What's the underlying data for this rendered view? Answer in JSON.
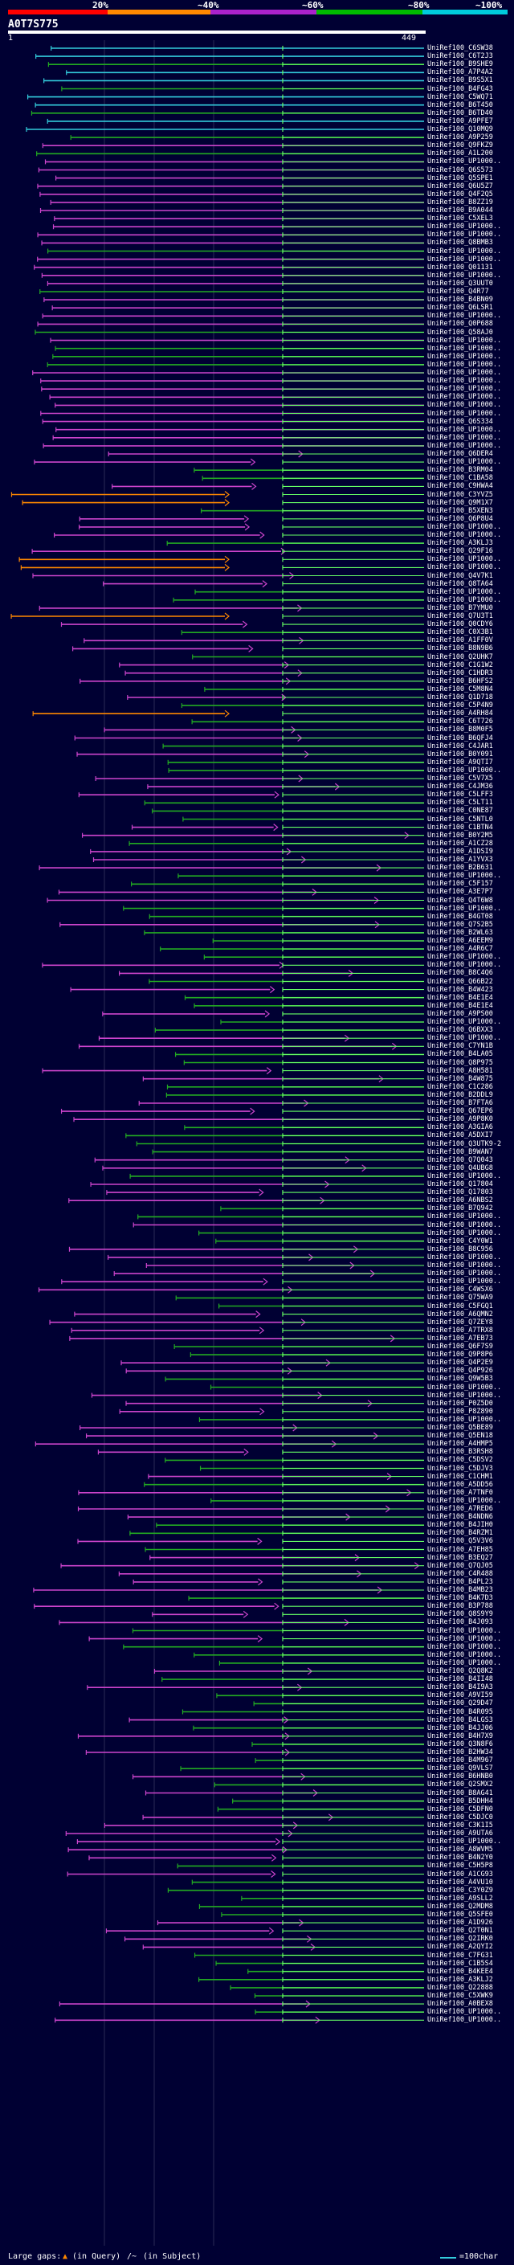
{
  "percent_axis": {
    "labels": [
      "20%",
      "~40%",
      "~60%",
      "~80%",
      "~100%"
    ],
    "band_colors": [
      "#ff0000",
      "#ff8800",
      "#aa22cc",
      "#00bb00",
      "#00ccdd"
    ]
  },
  "query": {
    "id": "A0T7S775",
    "start": "1",
    "end": "449"
  },
  "hit_colors": {
    "cyan": "#33ccdd",
    "green": "#22aa22",
    "magenta": "#cc44cc",
    "orange": "#ff8800",
    "pale_green": "#66ff66"
  },
  "hits": [
    "UniRef100_C6SW38",
    "UniRef100_C6T2J3",
    "UniRef100_B9SHE9",
    "UniRef100_A7P4A2",
    "UniRef100_B9S5X1",
    "UniRef100_B4FG43",
    "UniRef100_C5WQ71",
    "UniRef100_B6T450",
    "UniRef100_B6TD40",
    "UniRef100_A9PFE7",
    "UniRef100_Q10MQ9",
    "UniRef100_A9P259",
    "UniRef100_Q9FKZ9",
    "UniRef100_A1L200",
    "UniRef100_UP1000..",
    "UniRef100_Q6S573",
    "UniRef100_Q5SPE1",
    "UniRef100_Q6U5Z7",
    "UniRef100_Q4F2Q5",
    "UniRef100_B8ZZ19",
    "UniRef100_B9A044",
    "UniRef100_C5XEL3",
    "UniRef100_UP1000..",
    "UniRef100_UP1000..",
    "UniRef100_Q8BMB3",
    "UniRef100_UP1000..",
    "UniRef100_UP1000..",
    "UniRef100_Q01131",
    "UniRef100_UP1000..",
    "UniRef100_Q3UUT0",
    "UniRef100_Q4R77",
    "UniRef100_B4BN09",
    "UniRef100_Q6LSR1",
    "UniRef100_UP1000..",
    "UniRef100_Q0P688",
    "UniRef100_Q58AJ0",
    "UniRef100_UP1000..",
    "UniRef100_UP1000..",
    "UniRef100_UP1000..",
    "UniRef100_UP1000..",
    "UniRef100_UP1000..",
    "UniRef100_UP1000..",
    "UniRef100_UP1000..",
    "UniRef100_UP1000..",
    "UniRef100_UP1000..",
    "UniRef100_UP1000..",
    "UniRef100_Q6S334",
    "UniRef100_UP1000..",
    "UniRef100_UP1000..",
    "UniRef100_UP1000..",
    "UniRef100_Q6DER4",
    "UniRef100_UP1000..",
    "UniRef100_B3RM04",
    "UniRef100_C1BA58",
    "UniRef100_C9HWA4",
    "UniRef100_C3YVZ5",
    "UniRef100_Q9M1X7",
    "UniRef100_B5XEN3",
    "UniRef100_Q6P8U4",
    "UniRef100_UP1000..",
    "UniRef100_UP1000..",
    "UniRef100_A3KLJ3",
    "UniRef100_Q29F16",
    "UniRef100_UP1000..",
    "UniRef100_UP1000..",
    "UniRef100_Q4V7K1",
    "UniRef100_Q8TA64",
    "UniRef100_UP1000..",
    "UniRef100_UP1000..",
    "UniRef100_B7YMU0",
    "UniRef100_Q7U3T1",
    "UniRef100_Q0CDY6",
    "UniRef100_C0X3B1",
    "UniRef100_A1FF0V",
    "UniRef100_B8N9B6",
    "UniRef100_Q2UHK7",
    "UniRef100_C1G1W2",
    "UniRef100_C1HDR3",
    "UniRef100_B6HFS2",
    "UniRef100_C5M8N4",
    "UniRef100_Q1D718",
    "UniRef100_C5P4N9",
    "UniRef100_A4RH84",
    "UniRef100_C6T726",
    "UniRef100_B8M0F5",
    "UniRef100_B6QFJ4",
    "UniRef100_C4JAR1",
    "UniRef100_B0Y091",
    "UniRef100_A9QTI7",
    "UniRef100_UP1000..",
    "UniRef100_C5V7X5",
    "UniRef100_C4JM36",
    "UniRef100_C5LFF3",
    "UniRef100_C5LT11",
    "UniRef100_C0NE87",
    "UniRef100_C5NTL0",
    "UniRef100_C1BTN4",
    "UniRef100_B0Y2M5",
    "UniRef100_A1CZ28",
    "UniRef100_A1DSI9",
    "UniRef100_A1YVX3",
    "UniRef100_B2B631",
    "UniRef100_UP1000..",
    "UniRef100_C5F157",
    "UniRef100_A3E7P7",
    "UniRef100_Q4T6W8",
    "UniRef100_UP1000..",
    "UniRef100_B4GT08",
    "UniRef100_Q7S2B5",
    "UniRef100_B2WL63",
    "UniRef100_A6EEM9",
    "UniRef100_A4R6C7",
    "UniRef100_UP1000..",
    "UniRef100_UP1000..",
    "UniRef100_B8C4Q6",
    "UniRef100_Q66B22",
    "UniRef100_B4W423",
    "UniRef100_B4E1E4",
    "UniRef100_B4E1E4",
    "UniRef100_A9PS00",
    "UniRef100_UP1000..",
    "UniRef100_Q6BXX3",
    "UniRef100_UP1000..",
    "UniRef100_C7YN1B",
    "UniRef100_B4LA05",
    "UniRef100_Q8P975",
    "UniRef100_A8H581",
    "UniRef100_B4W875",
    "UniRef100_C1C286",
    "UniRef100_B2DDL9",
    "UniRef100_B7FTA6",
    "UniRef100_Q67EP6",
    "UniRef100_A9P8K0",
    "UniRef100_A3GIA6",
    "UniRef100_A5DXI7",
    "UniRef100_Q3UTK9-2",
    "UniRef100_B9WAN7",
    "UniRef100_Q7Q043",
    "UniRef100_Q4UBG8",
    "UniRef100_UP1000..",
    "UniRef100_Q17804",
    "UniRef100_Q17803",
    "UniRef100_A6NBS2",
    "UniRef100_B7Q942",
    "UniRef100_UP1000..",
    "UniRef100_UP1000..",
    "UniRef100_UP1000..",
    "UniRef100_C4Y0W1",
    "UniRef100_B8C956",
    "UniRef100_UP1000..",
    "UniRef100_UP1000..",
    "UniRef100_UP1000..",
    "UniRef100_UP1000..",
    "UniRef100_C4WSX6",
    "UniRef100_Q75WA9",
    "UniRef100_C5FGQ1",
    "UniRef100_A6QMN2",
    "UniRef100_Q7ZEY8",
    "UniRef100_A7TRX8",
    "UniRef100_A7EB73",
    "UniRef100_Q6F7S9",
    "UniRef100_Q9P8P6",
    "UniRef100_Q4P2E9",
    "UniRef100_Q4P926",
    "UniRef100_Q9W5B3",
    "UniRef100_UP1000..",
    "UniRef100_UP1000..",
    "UniRef100_P0Z5D0",
    "UniRef100_P8Z890",
    "UniRef100_UP1000..",
    "UniRef100_Q5BE89",
    "UniRef100_Q5EN18",
    "UniRef100_A4HMP5",
    "UniRef100_B3RSH8",
    "UniRef100_C5DSV2",
    "UniRef100_C5DJV3",
    "UniRef100_C1CHM1",
    "UniRef100_A5DD56",
    "UniRef100_A7TNF0",
    "UniRef100_UP1000..",
    "UniRef100_A7RED6",
    "UniRef100_B4NDN6",
    "UniRef100_B4JIH0",
    "UniRef100_B4RZM1",
    "UniRef100_Q5V3V6",
    "UniRef100_A7EH85",
    "UniRef100_B3EQ27",
    "UniRef100_Q7QJ05",
    "UniRef100_C4R488",
    "UniRef100_B4PL23",
    "UniRef100_B4MB23",
    "UniRef100_B4K7D3",
    "UniRef100_B3P788",
    "UniRef100_Q8S9Y9",
    "UniRef100_B4J093",
    "UniRef100_UP1000..",
    "UniRef100_UP1000..",
    "UniRef100_UP1000..",
    "UniRef100_UP1000..",
    "UniRef100_UP1000..",
    "UniRef100_Q2Q8K2",
    "UniRef100_B4II48",
    "UniRef100_B4I9A3",
    "UniRef100_A9VI59",
    "UniRef100_Q29D47",
    "UniRef100_B4R095",
    "UniRef100_B4LGS3",
    "UniRef100_B4JJ06",
    "UniRef100_B4H7X9",
    "UniRef100_Q3N8F6",
    "UniRef100_B2HW34",
    "UniRef100_B4M967",
    "UniRef100_Q9VLS7",
    "UniRef100_B6HNB0",
    "UniRef100_Q2SMX2",
    "UniRef100_B8AG41",
    "UniRef100_B5DHH4",
    "UniRef100_C5DFN0",
    "UniRef100_C5DJC0",
    "UniRef100_C3K1I5",
    "UniRef100_A9UTA6",
    "UniRef100_UP1000..",
    "UniRef100_A8WVM5",
    "UniRef100_B4N2Y0",
    "UniRef100_C5H5P8",
    "UniRef100_A1CG93",
    "UniRef100_A4VU10",
    "UniRef100_C3Y0Z9",
    "UniRef100_A9SLL2",
    "UniRef100_Q2MDM8",
    "UniRef100_Q5SFE0",
    "UniRef100_A1D926",
    "UniRef100_Q2T0N1",
    "UniRef100_Q2IRK0",
    "UniRef100_A2QYI2",
    "UniRef100_C7FG31",
    "UniRef100_C1B5S4",
    "UniRef100_B4KEE4",
    "UniRef100_A3KLJ2",
    "UniRef100_Q22888",
    "UniRef100_C5XWK9",
    "UniRef100_A0BEX8",
    "UniRef100_UP1000..",
    "UniRef100_UP1000.."
  ],
  "legend": {
    "large_gaps_label": "Large gaps:",
    "in_query": "(in Query)",
    "in_subject": "(in Subject)",
    "scale_label": "=100char"
  }
}
